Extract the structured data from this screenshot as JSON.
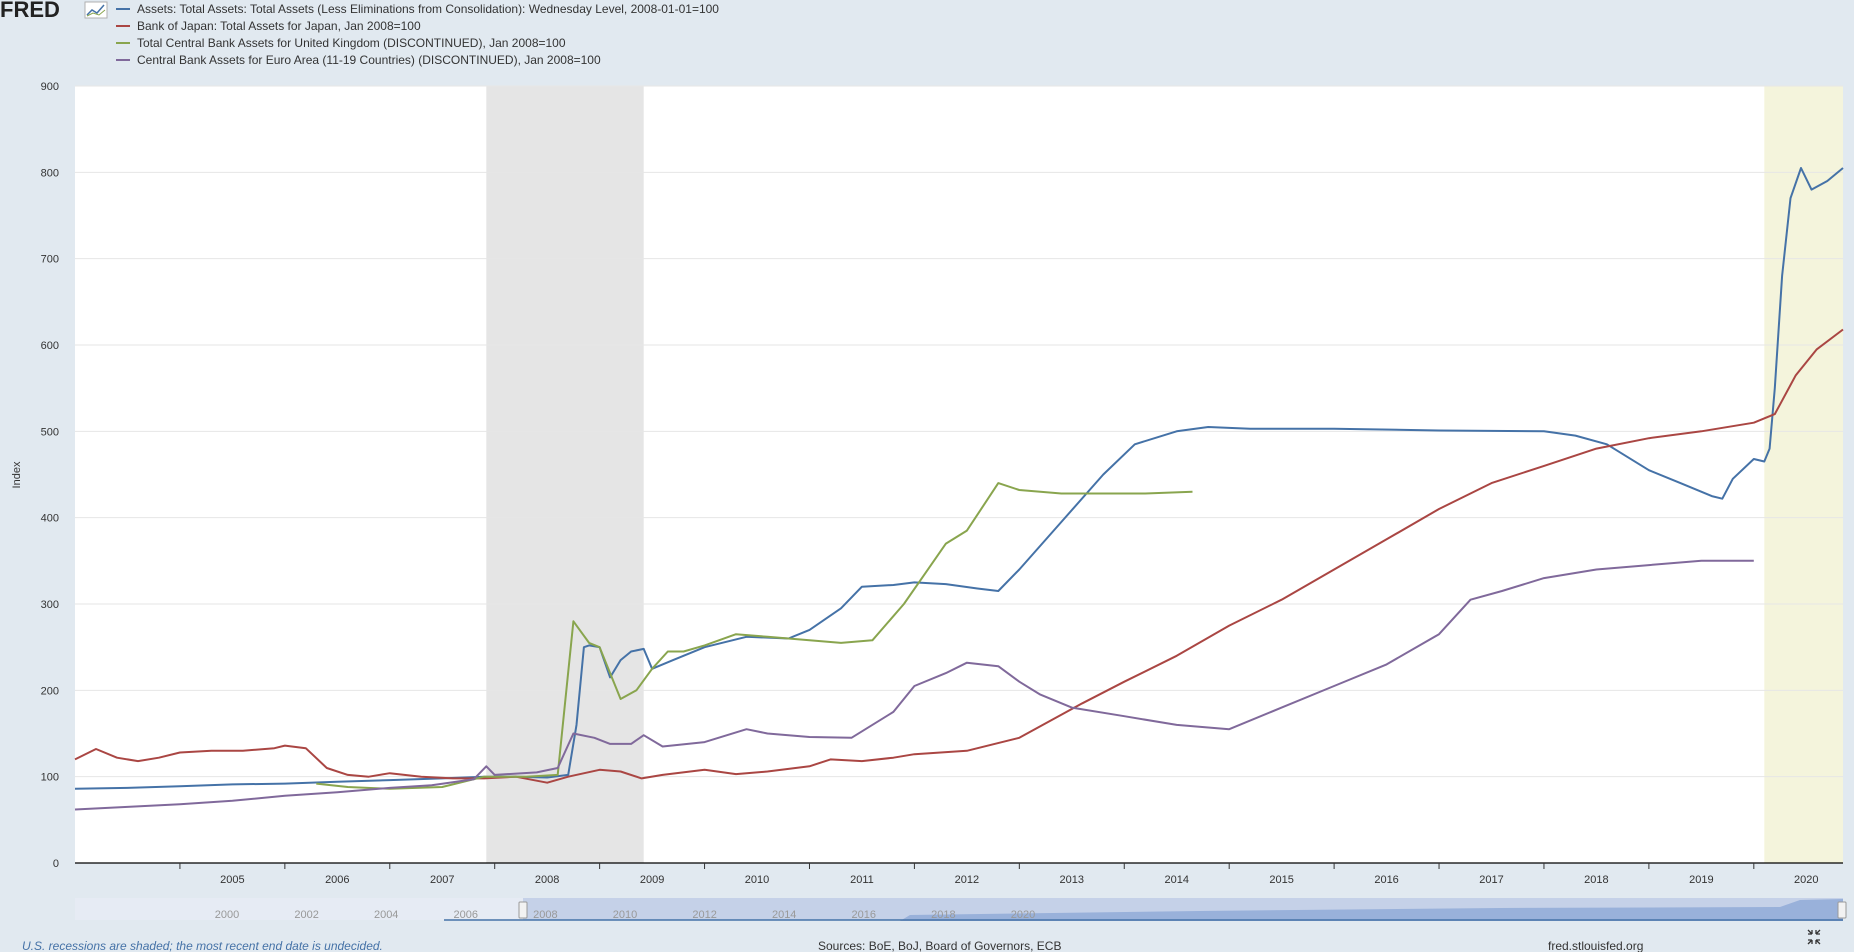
{
  "app": {
    "logo_text": "FRED"
  },
  "chart_data": {
    "type": "line",
    "ylabel": "Index",
    "ylim": [
      0,
      900
    ],
    "yticks": [
      0,
      100,
      200,
      300,
      400,
      500,
      600,
      700,
      800,
      900
    ],
    "xlim": [
      2004.0,
      2020.85
    ],
    "xticks": [
      "2005",
      "2006",
      "2007",
      "2008",
      "2009",
      "2010",
      "2011",
      "2012",
      "2013",
      "2014",
      "2015",
      "2016",
      "2017",
      "2018",
      "2019",
      "2020"
    ],
    "grid": true,
    "legend_position": "top-left",
    "shaded_ranges": [
      {
        "from": 2007.92,
        "to": 2009.42,
        "color": "#e5e5e5"
      },
      {
        "from": 2020.1,
        "to": 2020.85,
        "color": "#f4f4dc"
      }
    ],
    "series": [
      {
        "name": "Assets: Total Assets: Total Assets (Less Eliminations from Consolidation): Wednesday Level, 2008-01-01=100",
        "color": "#4572a7",
        "points": [
          [
            2004.0,
            86
          ],
          [
            2004.5,
            87
          ],
          [
            2005.0,
            89
          ],
          [
            2005.5,
            91
          ],
          [
            2006.0,
            92
          ],
          [
            2006.5,
            94
          ],
          [
            2007.0,
            96
          ],
          [
            2007.5,
            98
          ],
          [
            2007.9,
            100
          ],
          [
            2008.2,
            100
          ],
          [
            2008.5,
            99
          ],
          [
            2008.7,
            102
          ],
          [
            2008.78,
            160
          ],
          [
            2008.85,
            250
          ],
          [
            2008.9,
            252
          ],
          [
            2009.0,
            250
          ],
          [
            2009.1,
            215
          ],
          [
            2009.2,
            235
          ],
          [
            2009.3,
            245
          ],
          [
            2009.42,
            248
          ],
          [
            2009.5,
            225
          ],
          [
            2009.7,
            235
          ],
          [
            2010.0,
            250
          ],
          [
            2010.4,
            262
          ],
          [
            2010.8,
            260
          ],
          [
            2011.0,
            270
          ],
          [
            2011.3,
            295
          ],
          [
            2011.5,
            320
          ],
          [
            2011.8,
            322
          ],
          [
            2012.0,
            325
          ],
          [
            2012.3,
            323
          ],
          [
            2012.6,
            318
          ],
          [
            2012.8,
            315
          ],
          [
            2013.0,
            340
          ],
          [
            2013.4,
            395
          ],
          [
            2013.8,
            450
          ],
          [
            2014.1,
            485
          ],
          [
            2014.5,
            500
          ],
          [
            2014.8,
            505
          ],
          [
            2015.2,
            503
          ],
          [
            2016.0,
            503
          ],
          [
            2017.0,
            501
          ],
          [
            2018.0,
            500
          ],
          [
            2018.3,
            495
          ],
          [
            2018.6,
            485
          ],
          [
            2019.0,
            455
          ],
          [
            2019.3,
            440
          ],
          [
            2019.6,
            425
          ],
          [
            2019.7,
            422
          ],
          [
            2019.8,
            445
          ],
          [
            2020.0,
            468
          ],
          [
            2020.1,
            465
          ],
          [
            2020.15,
            480
          ],
          [
            2020.2,
            550
          ],
          [
            2020.27,
            680
          ],
          [
            2020.35,
            770
          ],
          [
            2020.45,
            805
          ],
          [
            2020.55,
            780
          ],
          [
            2020.7,
            790
          ],
          [
            2020.85,
            805
          ]
        ]
      },
      {
        "name": "Bank of Japan: Total Assets for Japan, Jan 2008=100",
        "color": "#aa4643",
        "points": [
          [
            2004.0,
            120
          ],
          [
            2004.2,
            132
          ],
          [
            2004.4,
            122
          ],
          [
            2004.6,
            118
          ],
          [
            2004.8,
            122
          ],
          [
            2005.0,
            128
          ],
          [
            2005.3,
            130
          ],
          [
            2005.6,
            130
          ],
          [
            2005.9,
            133
          ],
          [
            2006.0,
            136
          ],
          [
            2006.2,
            133
          ],
          [
            2006.4,
            110
          ],
          [
            2006.6,
            102
          ],
          [
            2006.8,
            100
          ],
          [
            2007.0,
            104
          ],
          [
            2007.3,
            100
          ],
          [
            2007.6,
            98
          ],
          [
            2007.9,
            98
          ],
          [
            2008.2,
            100
          ],
          [
            2008.5,
            93
          ],
          [
            2008.7,
            100
          ],
          [
            2009.0,
            108
          ],
          [
            2009.2,
            106
          ],
          [
            2009.4,
            98
          ],
          [
            2009.6,
            102
          ],
          [
            2010.0,
            108
          ],
          [
            2010.3,
            103
          ],
          [
            2010.6,
            106
          ],
          [
            2011.0,
            112
          ],
          [
            2011.2,
            120
          ],
          [
            2011.5,
            118
          ],
          [
            2011.8,
            122
          ],
          [
            2012.0,
            126
          ],
          [
            2012.5,
            130
          ],
          [
            2013.0,
            145
          ],
          [
            2013.3,
            165
          ],
          [
            2013.6,
            185
          ],
          [
            2014.0,
            210
          ],
          [
            2014.5,
            240
          ],
          [
            2015.0,
            275
          ],
          [
            2015.5,
            305
          ],
          [
            2016.0,
            340
          ],
          [
            2016.5,
            375
          ],
          [
            2017.0,
            410
          ],
          [
            2017.5,
            440
          ],
          [
            2018.0,
            460
          ],
          [
            2018.5,
            480
          ],
          [
            2019.0,
            492
          ],
          [
            2019.5,
            500
          ],
          [
            2020.0,
            510
          ],
          [
            2020.2,
            520
          ],
          [
            2020.4,
            565
          ],
          [
            2020.6,
            595
          ],
          [
            2020.85,
            618
          ]
        ]
      },
      {
        "name": "Total Central Bank Assets for United Kingdom (DISCONTINUED), Jan 2008=100",
        "color": "#89a54e",
        "points": [
          [
            2006.3,
            92
          ],
          [
            2006.6,
            88
          ],
          [
            2007.0,
            86
          ],
          [
            2007.5,
            88
          ],
          [
            2007.9,
            100
          ],
          [
            2008.3,
            100
          ],
          [
            2008.6,
            102
          ],
          [
            2008.75,
            280
          ],
          [
            2008.9,
            255
          ],
          [
            2009.0,
            250
          ],
          [
            2009.2,
            190
          ],
          [
            2009.35,
            200
          ],
          [
            2009.5,
            225
          ],
          [
            2009.65,
            245
          ],
          [
            2009.8,
            245
          ],
          [
            2010.0,
            252
          ],
          [
            2010.3,
            265
          ],
          [
            2010.6,
            262
          ],
          [
            2011.0,
            258
          ],
          [
            2011.3,
            255
          ],
          [
            2011.6,
            258
          ],
          [
            2011.9,
            300
          ],
          [
            2012.1,
            335
          ],
          [
            2012.3,
            370
          ],
          [
            2012.5,
            385
          ],
          [
            2012.8,
            440
          ],
          [
            2013.0,
            432
          ],
          [
            2013.4,
            428
          ],
          [
            2013.8,
            428
          ],
          [
            2014.2,
            428
          ],
          [
            2014.65,
            430
          ]
        ]
      },
      {
        "name": "Central Bank Assets for Euro Area (11-19 Countries) (DISCONTINUED), Jan 2008=100",
        "color": "#80699b",
        "points": [
          [
            2004.0,
            62
          ],
          [
            2004.5,
            65
          ],
          [
            2005.0,
            68
          ],
          [
            2005.5,
            72
          ],
          [
            2006.0,
            78
          ],
          [
            2006.5,
            82
          ],
          [
            2007.0,
            87
          ],
          [
            2007.4,
            90
          ],
          [
            2007.8,
            97
          ],
          [
            2007.92,
            112
          ],
          [
            2008.0,
            102
          ],
          [
            2008.4,
            105
          ],
          [
            2008.6,
            110
          ],
          [
            2008.75,
            150
          ],
          [
            2008.95,
            145
          ],
          [
            2009.1,
            138
          ],
          [
            2009.3,
            138
          ],
          [
            2009.42,
            148
          ],
          [
            2009.6,
            135
          ],
          [
            2010.0,
            140
          ],
          [
            2010.4,
            155
          ],
          [
            2010.6,
            150
          ],
          [
            2011.0,
            146
          ],
          [
            2011.4,
            145
          ],
          [
            2011.8,
            175
          ],
          [
            2012.0,
            205
          ],
          [
            2012.3,
            220
          ],
          [
            2012.5,
            232
          ],
          [
            2012.8,
            228
          ],
          [
            2013.0,
            210
          ],
          [
            2013.2,
            195
          ],
          [
            2013.5,
            180
          ],
          [
            2014.0,
            170
          ],
          [
            2014.5,
            160
          ],
          [
            2015.0,
            155
          ],
          [
            2015.5,
            180
          ],
          [
            2016.0,
            205
          ],
          [
            2016.5,
            230
          ],
          [
            2017.0,
            265
          ],
          [
            2017.3,
            305
          ],
          [
            2017.6,
            315
          ],
          [
            2018.0,
            330
          ],
          [
            2018.5,
            340
          ],
          [
            2019.0,
            345
          ],
          [
            2019.5,
            350
          ],
          [
            2020.0,
            350
          ]
        ]
      }
    ]
  },
  "navigator": {
    "labels": [
      "2000",
      "2002",
      "2004",
      "2006",
      "2008",
      "2010",
      "2012",
      "2014",
      "2016",
      "2018",
      "2020"
    ]
  },
  "footer": {
    "note": "U.S. recessions are shaded; the most recent end date is undecided.",
    "sources": "Sources: BoE, BoJ, Board of Governors, ECB",
    "site": "fred.stlouisfed.org"
  },
  "icons": {
    "chart": "chart-thumbnail-icon",
    "fullscreen": "fullscreen-icon"
  }
}
